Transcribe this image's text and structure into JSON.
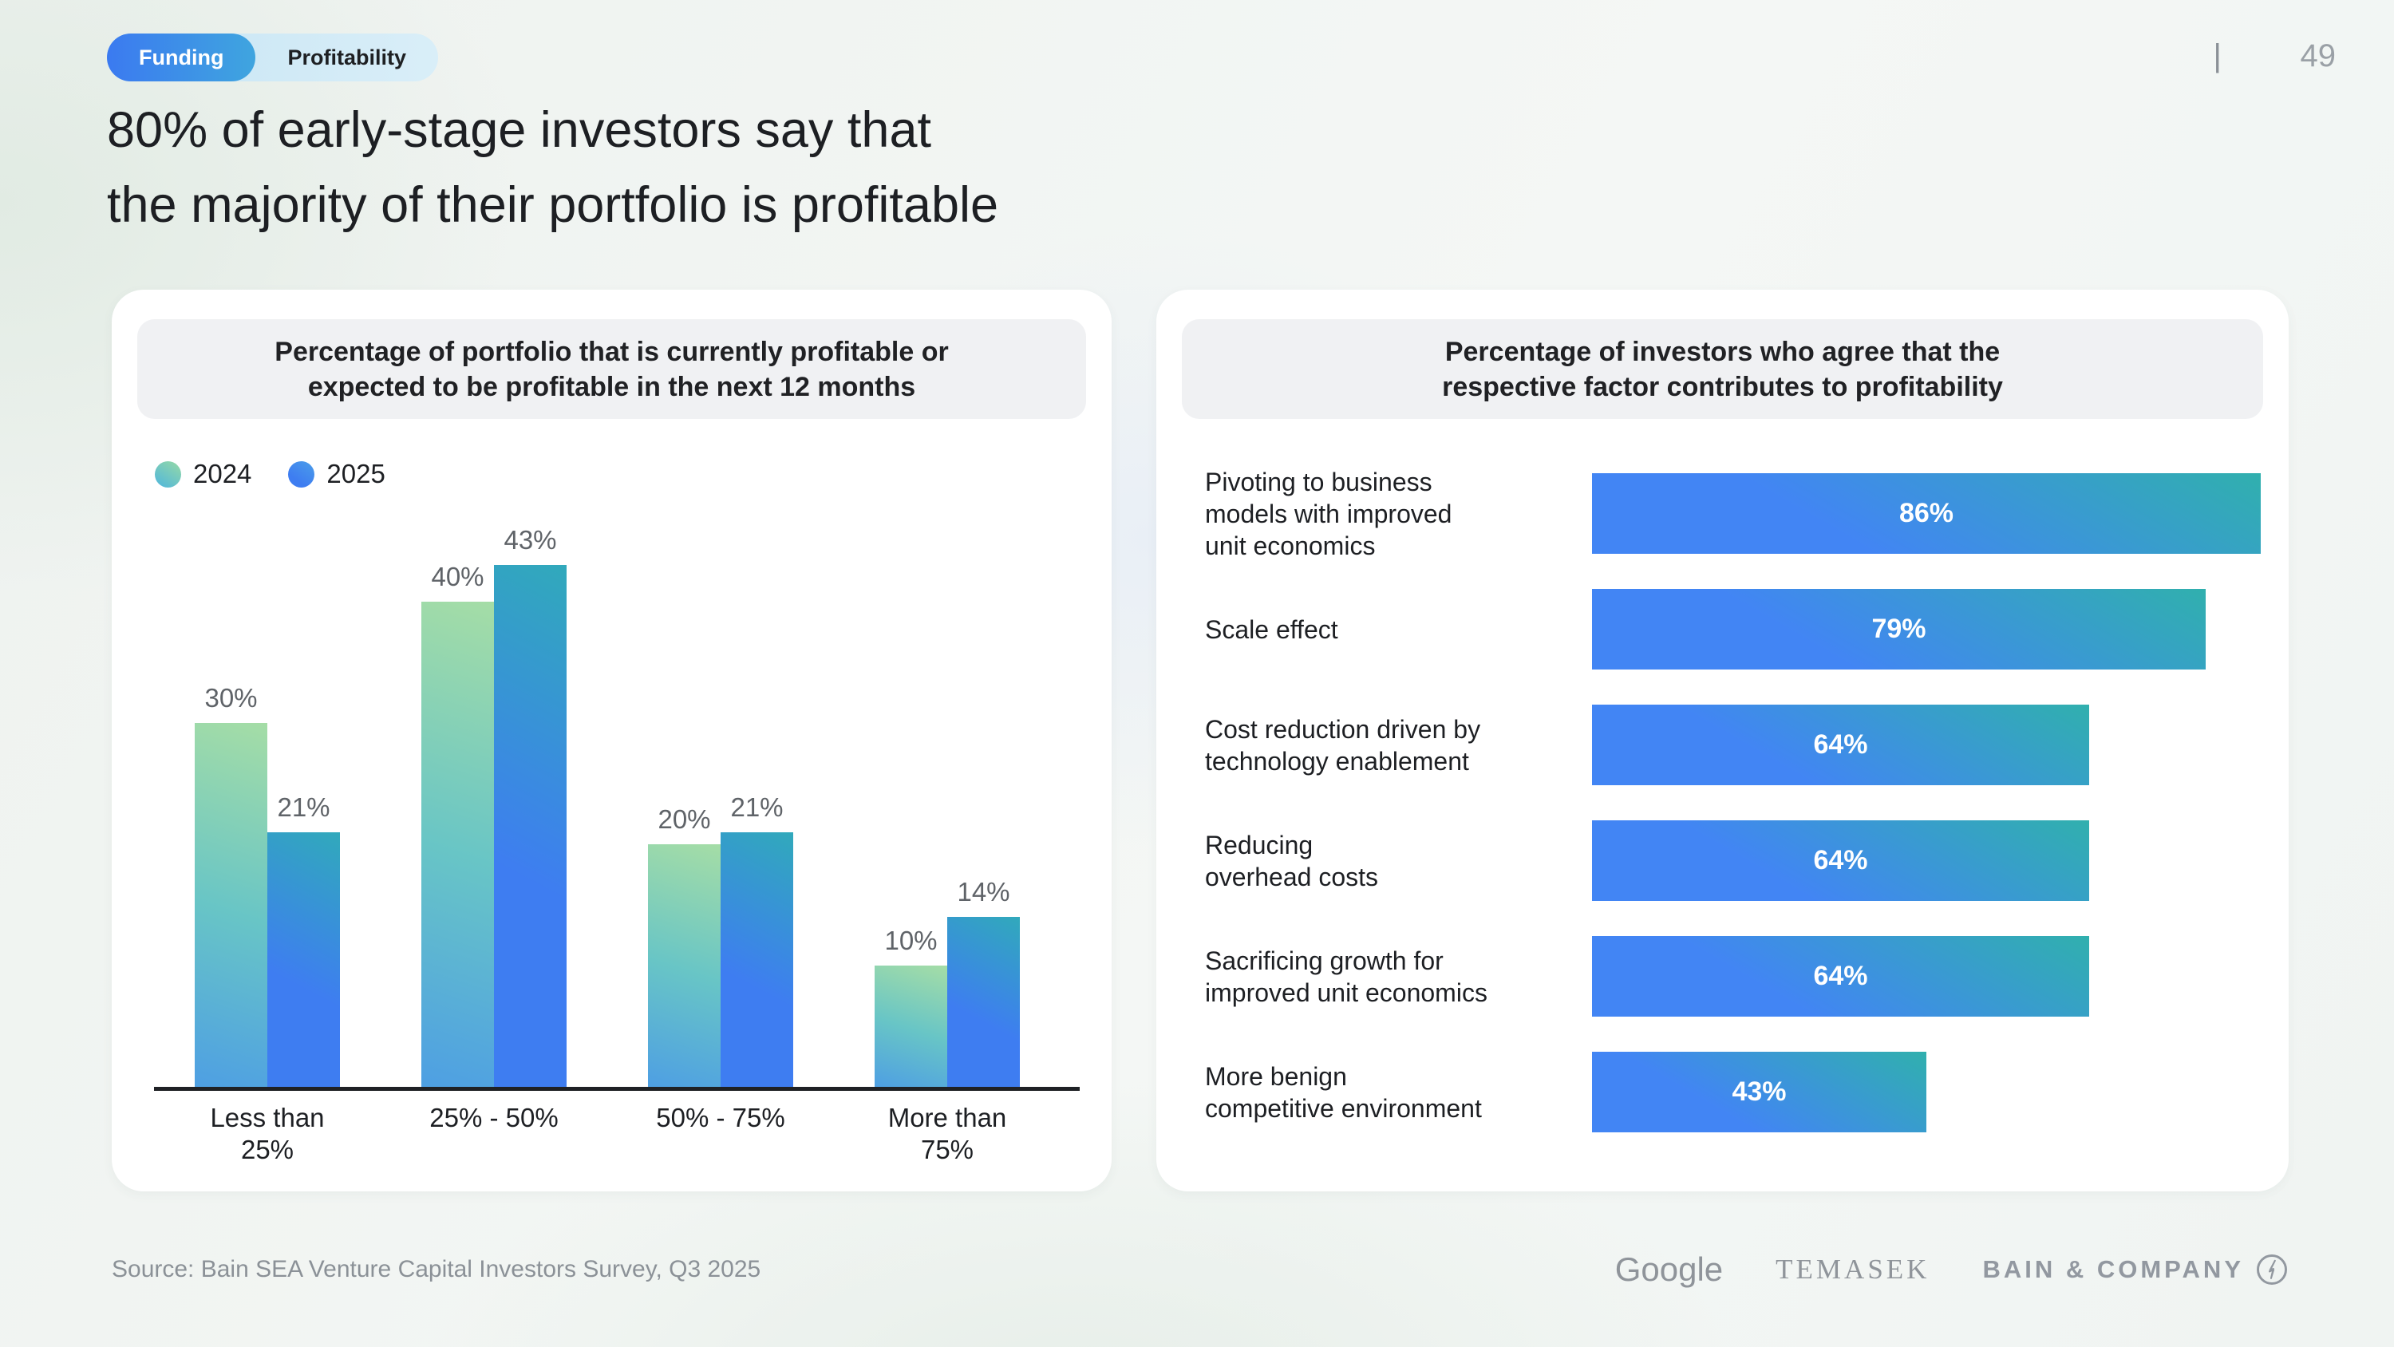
{
  "page": {
    "divider": "|",
    "number": "49"
  },
  "tabs": [
    {
      "label": "Funding",
      "active": true
    },
    {
      "label": "Profitability",
      "active": false
    }
  ],
  "title": "80% of early-stage investors say that\nthe majority of their portfolio is profitable",
  "source": "Source: Bain SEA Venture Capital Investors Survey, Q3 2025",
  "footer_logos": {
    "google": "Google",
    "temasek": "TEMASEK",
    "bain": "BAIN & COMPANY"
  },
  "colors": {
    "accent_blue": "#4285F4",
    "teal": "#2FAFB4",
    "green_light": "#A5DDA6",
    "blue_2024_base": "#4E9FE3",
    "tab_active_start": "#3B7AF0",
    "tab_active_end": "#3FA5DF",
    "tab_inactive_bg": "#CDE7F5",
    "header_bg": "#F0F1F3",
    "text_dark": "#1D1F23",
    "text_gray": "#5F6368",
    "muted_gray": "#8F949A"
  },
  "chart_data": [
    {
      "type": "bar",
      "orientation": "vertical",
      "title": "Percentage of portfolio that is currently profitable or\nexpected to be profitable in the next 12 months",
      "categories": [
        "Less than\n25%",
        "25% - 50%",
        "50% - 75%",
        "More than\n75%"
      ],
      "series": [
        {
          "name": "2024",
          "values": [
            30,
            40,
            20,
            10
          ]
        },
        {
          "name": "2025",
          "values": [
            21,
            43,
            21,
            14
          ]
        }
      ],
      "unit": "%",
      "ylim": [
        0,
        50
      ],
      "grid": false,
      "legend_position": "top-left"
    },
    {
      "type": "bar",
      "orientation": "horizontal",
      "title": "Percentage of investors who agree that the\nrespective factor contributes to profitability",
      "categories": [
        "Pivoting to business\nmodels with improved\nunit economics",
        "Scale effect",
        "Cost reduction driven by\ntechnology enablement",
        "Reducing\noverhead costs",
        "Sacrificing growth for\nimproved unit economics",
        "More benign\ncompetitive environment"
      ],
      "values": [
        86,
        79,
        64,
        64,
        64,
        43
      ],
      "unit": "%",
      "xlim": [
        0,
        100
      ],
      "grid": false
    }
  ]
}
